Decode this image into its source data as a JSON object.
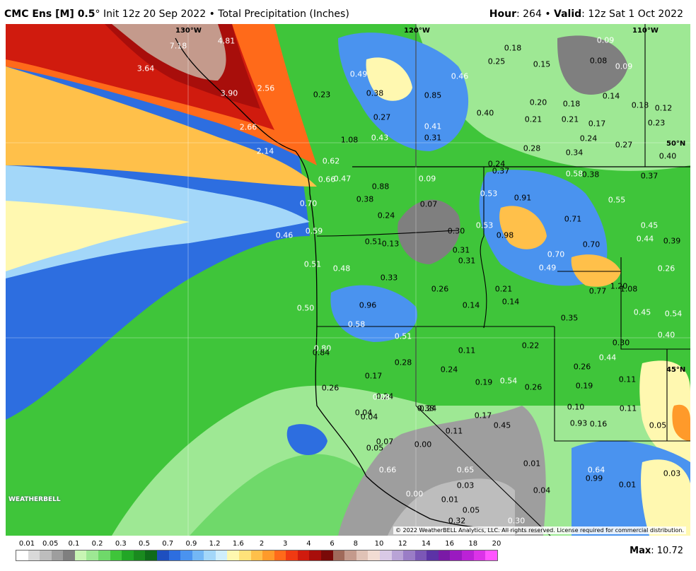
{
  "header": {
    "model": "CMC Ens [M] 0.5",
    "degree": "°",
    "init": " Init 12z 20 Sep 2022 • Total Precipitation (Inches)",
    "hour_label": "Hour",
    "hour_value": ": 264 • ",
    "valid_label": "Valid",
    "valid_value": ": 12z Sat 1 Oct 2022"
  },
  "map": {
    "longitude_labels": [
      "130°W",
      "120°W",
      "110°W"
    ],
    "latitude_labels": [
      "50°N",
      "45°N"
    ],
    "values": [
      {
        "v": "4.81",
        "light": true
      },
      {
        "v": "7.18",
        "light": true
      },
      {
        "v": "3.64",
        "light": true
      },
      {
        "v": "3.90",
        "light": true
      },
      {
        "v": "2.56",
        "light": true
      },
      {
        "v": "2.66",
        "light": true
      },
      {
        "v": "2.14",
        "light": true
      },
      {
        "v": "0.49",
        "light": true
      },
      {
        "v": "0.38"
      },
      {
        "v": "0.23"
      },
      {
        "v": "0.46",
        "light": true
      },
      {
        "v": "0.85"
      },
      {
        "v": "0.18"
      },
      {
        "v": "0.25"
      },
      {
        "v": "0.15"
      },
      {
        "v": "0.09",
        "light": true
      },
      {
        "v": "0.08"
      },
      {
        "v": "0.09",
        "light": true
      },
      {
        "v": "0.14"
      },
      {
        "v": "0.18"
      },
      {
        "v": "0.12"
      },
      {
        "v": "0.27"
      },
      {
        "v": "0.41",
        "light": true
      },
      {
        "v": "0.40"
      },
      {
        "v": "0.20"
      },
      {
        "v": "0.18"
      },
      {
        "v": "0.21"
      },
      {
        "v": "0.21"
      },
      {
        "v": "0.17"
      },
      {
        "v": "0.23"
      },
      {
        "v": "0.31"
      },
      {
        "v": "0.43",
        "light": true
      },
      {
        "v": "1.08"
      },
      {
        "v": "0.24"
      },
      {
        "v": "0.28"
      },
      {
        "v": "0.34"
      },
      {
        "v": "0.27"
      },
      {
        "v": "0.40"
      },
      {
        "v": "0.62",
        "light": true
      },
      {
        "v": "0.24"
      },
      {
        "v": "0.37"
      },
      {
        "v": "0.58",
        "light": true
      },
      {
        "v": "0.38"
      },
      {
        "v": "0.37"
      },
      {
        "v": "0.66",
        "light": true
      },
      {
        "v": "0.47",
        "light": true
      },
      {
        "v": "0.88"
      },
      {
        "v": "0.09",
        "light": true
      },
      {
        "v": "0.53",
        "light": true
      },
      {
        "v": "0.91"
      },
      {
        "v": "0.55",
        "light": true
      },
      {
        "v": "0.70",
        "light": true
      },
      {
        "v": "0.38"
      },
      {
        "v": "0.07"
      },
      {
        "v": "0.24"
      },
      {
        "v": "0.71"
      },
      {
        "v": "0.46",
        "light": true
      },
      {
        "v": "0.59",
        "light": true
      },
      {
        "v": "0.30"
      },
      {
        "v": "0.53",
        "light": true
      },
      {
        "v": "0.98"
      },
      {
        "v": "0.45",
        "light": true
      },
      {
        "v": "0.44",
        "light": true
      },
      {
        "v": "0.39"
      },
      {
        "v": "0.51"
      },
      {
        "v": "0.13"
      },
      {
        "v": "0.70"
      },
      {
        "v": "0.31"
      },
      {
        "v": "0.70",
        "light": true
      },
      {
        "v": "0.51",
        "light": true
      },
      {
        "v": "0.48",
        "light": true
      },
      {
        "v": "0.31"
      },
      {
        "v": "0.49",
        "light": true
      },
      {
        "v": "0.26",
        "light": true
      },
      {
        "v": "0.33"
      },
      {
        "v": "0.26"
      },
      {
        "v": "0.21"
      },
      {
        "v": "0.77"
      },
      {
        "v": "1.20"
      },
      {
        "v": "1.08"
      },
      {
        "v": "0.14"
      },
      {
        "v": "0.50",
        "light": true
      },
      {
        "v": "0.96"
      },
      {
        "v": "0.14"
      },
      {
        "v": "0.45",
        "light": true
      },
      {
        "v": "0.54",
        "light": true
      },
      {
        "v": "0.58",
        "light": true
      },
      {
        "v": "0.35"
      },
      {
        "v": "0.51",
        "light": true
      },
      {
        "v": "0.40",
        "light": true
      },
      {
        "v": "0.30"
      },
      {
        "v": "0.80",
        "light": true
      },
      {
        "v": "0.84"
      },
      {
        "v": "0.11"
      },
      {
        "v": "0.22"
      },
      {
        "v": "0.44",
        "light": true
      },
      {
        "v": "0.28"
      },
      {
        "v": "0.24"
      },
      {
        "v": "0.24"
      },
      {
        "v": "0.17"
      },
      {
        "v": "0.26"
      },
      {
        "v": "0.19"
      },
      {
        "v": "0.19"
      },
      {
        "v": "0.54",
        "light": true
      },
      {
        "v": "0.26"
      },
      {
        "v": "0.11"
      },
      {
        "v": "0.24"
      },
      {
        "v": "0.26"
      },
      {
        "v": "0.08",
        "light": true
      },
      {
        "v": "0.38"
      },
      {
        "v": "0.10"
      },
      {
        "v": "0.11"
      },
      {
        "v": "0.04"
      },
      {
        "v": "0.04"
      },
      {
        "v": "0.17"
      },
      {
        "v": "0.45"
      },
      {
        "v": "0.93"
      },
      {
        "v": "0.16"
      },
      {
        "v": "0.05"
      },
      {
        "v": "0.11"
      },
      {
        "v": "0.07"
      },
      {
        "v": "0.00"
      },
      {
        "v": "0.05"
      },
      {
        "v": "0.01"
      },
      {
        "v": "0.66",
        "light": true
      },
      {
        "v": "0.65",
        "light": true
      },
      {
        "v": "0.64",
        "light": true
      },
      {
        "v": "0.99"
      },
      {
        "v": "0.01"
      },
      {
        "v": "0.03"
      },
      {
        "v": "0.03"
      },
      {
        "v": "0.00",
        "light": true
      },
      {
        "v": "0.01"
      },
      {
        "v": "0.04"
      },
      {
        "v": "0.05"
      },
      {
        "v": "0.32"
      },
      {
        "v": "0.30",
        "light": true
      }
    ],
    "copyright": "© 2022 WeatherBELL Analytics, LLC. All rights reserved. License required for commercial distribution.",
    "logo": "WEATHERBELL"
  },
  "legend": {
    "ticks": [
      "0.01",
      "0.05",
      "0.1",
      "0.2",
      "0.3",
      "0.5",
      "0.7",
      "0.9",
      "1.2",
      "1.6",
      "2",
      "3",
      "4",
      "6",
      "8",
      "10",
      "12",
      "14",
      "16",
      "18",
      "20"
    ],
    "colors": [
      "#ffffff",
      "#d9d9d9",
      "#bdbdbd",
      "#9e9e9e",
      "#7f7f7f",
      "#c8f5b4",
      "#9ee894",
      "#6fd96a",
      "#3fc53a",
      "#22a626",
      "#1a8a1f",
      "#0f6b1a",
      "#1e4fbf",
      "#2d6ee0",
      "#4a93ef",
      "#73b7f5",
      "#a3d7f9",
      "#cfeefb",
      "#fff8b0",
      "#ffe27a",
      "#ffc04a",
      "#ff9a2a",
      "#ff6a1a",
      "#f03a12",
      "#d01b0e",
      "#a80e0b",
      "#7a0a08",
      "#a06a5a",
      "#c49a8c",
      "#e0c2b6",
      "#f2dcd3",
      "#d9c9e6",
      "#b9a3d6",
      "#9a7dc6",
      "#7b57b6",
      "#5c33a6",
      "#7a1aa6",
      "#9a1ac0",
      "#bb22d6",
      "#db33e8",
      "#ff55ff"
    ],
    "max_label": "Max",
    "max_value": ": 10.72"
  }
}
